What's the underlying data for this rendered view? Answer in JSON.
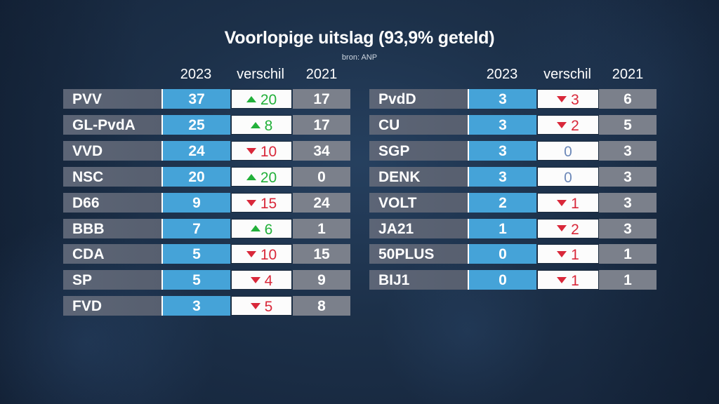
{
  "title": "Voorlopige uitslag (93,9% geteld)",
  "source": "bron: ANP",
  "colors": {
    "year2023_bg": "#45a3d8",
    "year2021_bg": "#7b808b",
    "party_bg": "#5b6372",
    "increase": "#22b03a",
    "decrease": "#d9283a",
    "no_change": "#6c88b8"
  },
  "tables": [
    {
      "headers": {
        "y2023": "2023",
        "diff": "verschil",
        "y2021": "2021"
      },
      "rows": [
        {
          "party": "PVV",
          "y2023": "37",
          "diff": "20",
          "dir": "up",
          "y2021": "17"
        },
        {
          "party": "GL-PvdA",
          "y2023": "25",
          "diff": "8",
          "dir": "up",
          "y2021": "17"
        },
        {
          "party": "VVD",
          "y2023": "24",
          "diff": "10",
          "dir": "down",
          "y2021": "34"
        },
        {
          "party": "NSC",
          "y2023": "20",
          "diff": "20",
          "dir": "up",
          "y2021": "0"
        },
        {
          "party": "D66",
          "y2023": "9",
          "diff": "15",
          "dir": "down",
          "y2021": "24"
        },
        {
          "party": "BBB",
          "y2023": "7",
          "diff": "6",
          "dir": "up",
          "y2021": "1"
        },
        {
          "party": "CDA",
          "y2023": "5",
          "diff": "10",
          "dir": "down",
          "y2021": "15"
        },
        {
          "party": "SP",
          "y2023": "5",
          "diff": "4",
          "dir": "down",
          "y2021": "9"
        },
        {
          "party": "FVD",
          "y2023": "3",
          "diff": "5",
          "dir": "down",
          "y2021": "8"
        }
      ]
    },
    {
      "headers": {
        "y2023": "2023",
        "diff": "verschil",
        "y2021": "2021"
      },
      "rows": [
        {
          "party": "PvdD",
          "y2023": "3",
          "diff": "3",
          "dir": "down",
          "y2021": "6"
        },
        {
          "party": "CU",
          "y2023": "3",
          "diff": "2",
          "dir": "down",
          "y2021": "5"
        },
        {
          "party": "SGP",
          "y2023": "3",
          "diff": "0",
          "dir": "zero",
          "y2021": "3"
        },
        {
          "party": "DENK",
          "y2023": "3",
          "diff": "0",
          "dir": "zero",
          "y2021": "3"
        },
        {
          "party": "VOLT",
          "y2023": "2",
          "diff": "1",
          "dir": "down",
          "y2021": "3"
        },
        {
          "party": "JA21",
          "y2023": "1",
          "diff": "2",
          "dir": "down",
          "y2021": "3"
        },
        {
          "party": "50PLUS",
          "y2023": "0",
          "diff": "1",
          "dir": "down",
          "y2021": "1"
        },
        {
          "party": "BIJ1",
          "y2023": "0",
          "diff": "1",
          "dir": "down",
          "y2021": "1"
        }
      ]
    }
  ]
}
